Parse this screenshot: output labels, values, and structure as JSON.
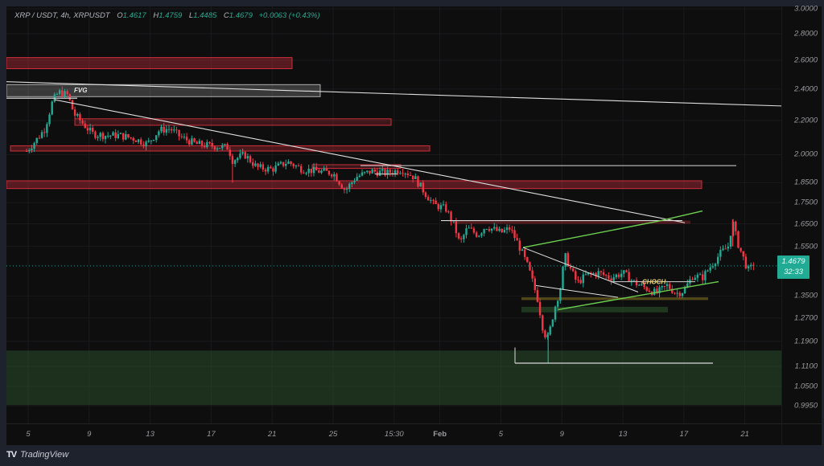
{
  "header": {
    "symbol": "XRP / USDT, 4h, XRPUSDT",
    "open_label": "O",
    "open": "1.4617",
    "high_label": "H",
    "high": "1.4759",
    "low_label": "L",
    "low": "1.4485",
    "close_label": "C",
    "close": "1.4679",
    "change": "+0.0063 (+0.43%)"
  },
  "price_badge": {
    "price": "1.4679",
    "countdown": "32:33"
  },
  "footer": {
    "logo": "TV",
    "brand": "TradingView"
  },
  "colors": {
    "up": "#22ab94",
    "down": "#f23645",
    "background": "#0e0e0f",
    "grid": "#1a1a1c",
    "supply_zone": "#f23645",
    "demand_zone": "#2e5a2e",
    "fvg": "#ffffff",
    "trendline": "#e0e0e0",
    "channel": "#6ccf4f",
    "choch": "#e8d37a",
    "badge": "#22ab94"
  },
  "chart_data": {
    "type": "candlestick",
    "title": "XRP / USDT, 4h, XRPUSDT",
    "timeframe": "4h",
    "y_scale": "log",
    "yticks": [
      3.0,
      2.8,
      2.6,
      2.4,
      2.2,
      2.0,
      1.85,
      1.75,
      1.65,
      1.55,
      1.35,
      1.27,
      1.19,
      1.11,
      1.05,
      0.995
    ],
    "ytick_labels": [
      "3.0000",
      "2.8000",
      "2.6000",
      "2.4000",
      "2.2000",
      "2.0000",
      "1.8500",
      "1.7500",
      "1.6500",
      "1.5500",
      "1.3500",
      "1.2700",
      "1.1900",
      "1.1100",
      "1.0500",
      "0.9950"
    ],
    "xtick_labels": [
      "5",
      "9",
      "13",
      "17",
      "21",
      "25",
      "15:30",
      "Feb",
      "5",
      "9",
      "13",
      "17",
      "21"
    ],
    "last_price": 1.4679,
    "ohlc_last": {
      "open": 1.4617,
      "high": 1.4759,
      "low": 1.4485,
      "close": 1.4679,
      "change": 0.0063,
      "change_pct": 0.43
    },
    "approx_close_path": [
      {
        "day": 4.9,
        "price": 2.02
      },
      {
        "day": 5.5,
        "price": 2.08
      },
      {
        "day": 6.1,
        "price": 2.15
      },
      {
        "day": 6.6,
        "price": 2.32
      },
      {
        "day": 7.0,
        "price": 2.38
      },
      {
        "day": 7.6,
        "price": 2.36
      },
      {
        "day": 8.0,
        "price": 2.24
      },
      {
        "day": 8.6,
        "price": 2.18
      },
      {
        "day": 9.2,
        "price": 2.12
      },
      {
        "day": 10.0,
        "price": 2.11
      },
      {
        "day": 11.0,
        "price": 2.11
      },
      {
        "day": 12.0,
        "price": 2.09
      },
      {
        "day": 12.8,
        "price": 2.06
      },
      {
        "day": 13.6,
        "price": 2.14
      },
      {
        "day": 14.3,
        "price": 2.15
      },
      {
        "day": 15.0,
        "price": 2.1
      },
      {
        "day": 16.0,
        "price": 2.06
      },
      {
        "day": 17.0,
        "price": 2.05
      },
      {
        "day": 18.1,
        "price": 2.04
      },
      {
        "day": 18.4,
        "price": 1.97
      },
      {
        "day": 19.2,
        "price": 2.0
      },
      {
        "day": 20.0,
        "price": 1.93
      },
      {
        "day": 21.0,
        "price": 1.92
      },
      {
        "day": 22.0,
        "price": 1.96
      },
      {
        "day": 23.0,
        "price": 1.92
      },
      {
        "day": 24.0,
        "price": 1.91
      },
      {
        "day": 25.0,
        "price": 1.9
      },
      {
        "day": 25.8,
        "price": 1.81
      },
      {
        "day": 26.5,
        "price": 1.88
      },
      {
        "day": 27.5,
        "price": 1.91
      },
      {
        "day": 28.5,
        "price": 1.9
      },
      {
        "day": 29.5,
        "price": 1.92
      },
      {
        "day": 30.3,
        "price": 1.88
      },
      {
        "day": 31.0,
        "price": 1.8
      },
      {
        "day": 31.6,
        "price": 1.74
      },
      {
        "day": 32.4,
        "price": 1.72
      },
      {
        "day": 33.0,
        "price": 1.63
      },
      {
        "day": 33.3,
        "price": 1.56
      },
      {
        "day": 33.8,
        "price": 1.63
      },
      {
        "day": 34.5,
        "price": 1.6
      },
      {
        "day": 35.0,
        "price": 1.64
      },
      {
        "day": 36.0,
        "price": 1.61
      },
      {
        "day": 36.6,
        "price": 1.63
      },
      {
        "day": 37.2,
        "price": 1.55
      },
      {
        "day": 37.8,
        "price": 1.46
      },
      {
        "day": 38.4,
        "price": 1.34
      },
      {
        "day": 38.8,
        "price": 1.22
      },
      {
        "day": 39.1,
        "price": 1.2
      },
      {
        "day": 39.5,
        "price": 1.3
      },
      {
        "day": 39.9,
        "price": 1.38
      },
      {
        "day": 40.2,
        "price": 1.51
      },
      {
        "day": 40.6,
        "price": 1.45
      },
      {
        "day": 41.0,
        "price": 1.4
      },
      {
        "day": 41.6,
        "price": 1.43
      },
      {
        "day": 42.4,
        "price": 1.44
      },
      {
        "day": 43.2,
        "price": 1.42
      },
      {
        "day": 44.0,
        "price": 1.44
      },
      {
        "day": 44.8,
        "price": 1.4
      },
      {
        "day": 45.5,
        "price": 1.38
      },
      {
        "day": 46.2,
        "price": 1.36
      },
      {
        "day": 46.9,
        "price": 1.39
      },
      {
        "day": 47.5,
        "price": 1.36
      },
      {
        "day": 48.0,
        "price": 1.37
      },
      {
        "day": 48.6,
        "price": 1.43
      },
      {
        "day": 49.2,
        "price": 1.42
      },
      {
        "day": 49.8,
        "price": 1.47
      },
      {
        "day": 50.4,
        "price": 1.52
      },
      {
        "day": 50.9,
        "price": 1.55
      },
      {
        "day": 51.2,
        "price": 1.66
      },
      {
        "day": 51.5,
        "price": 1.57
      },
      {
        "day": 51.9,
        "price": 1.5
      },
      {
        "day": 52.2,
        "price": 1.45
      },
      {
        "day": 52.6,
        "price": 1.4679
      }
    ],
    "annotations": [
      {
        "type": "label",
        "text": "FVG",
        "price": 2.37
      },
      {
        "type": "label",
        "text": "CHOCH",
        "price": 1.41
      },
      {
        "type": "zone",
        "kind": "supply",
        "top": 2.62,
        "bottom": 2.54
      },
      {
        "type": "zone",
        "kind": "fvg",
        "top": 2.43,
        "bottom": 2.35
      },
      {
        "type": "zone",
        "kind": "supply",
        "top": 2.21,
        "bottom": 2.17
      },
      {
        "type": "zone",
        "kind": "supply",
        "top": 2.05,
        "bottom": 2.02
      },
      {
        "type": "zone",
        "kind": "supply",
        "top": 1.86,
        "bottom": 1.82
      },
      {
        "type": "zone",
        "kind": "demand",
        "top": 1.16,
        "bottom": 0.997
      },
      {
        "type": "zone",
        "kind": "demand",
        "top": 1.31,
        "bottom": 1.29
      },
      {
        "type": "zone",
        "kind": "order-block",
        "top": 1.345,
        "bottom": 1.335
      }
    ]
  }
}
